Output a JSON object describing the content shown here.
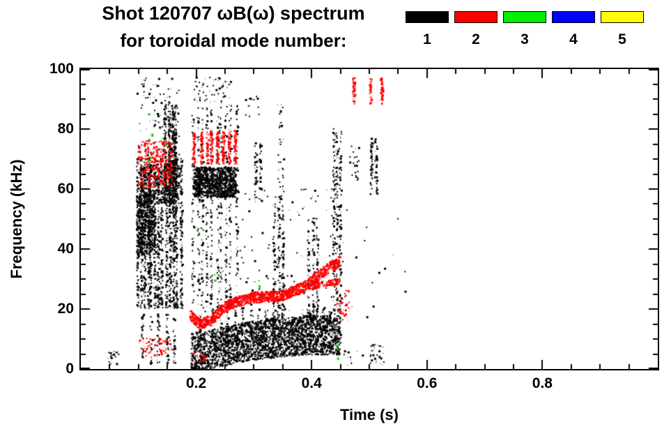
{
  "page": {
    "background": "#ffffff"
  },
  "title": {
    "line1": "Shot 120707 ωB(ω) spectrum",
    "line2": "for toroidal mode number:"
  },
  "legend": {
    "entries": [
      {
        "label": "1",
        "color": "#000000"
      },
      {
        "label": "2",
        "color": "#ff0000"
      },
      {
        "label": "3",
        "color": "#00ee00"
      },
      {
        "label": "4",
        "color": "#0000ff"
      },
      {
        "label": "5",
        "color": "#ffff00"
      }
    ]
  },
  "chart_data": {
    "type": "scatter",
    "title": "Shot 120707 ωB(ω) spectrum for toroidal mode number: 1 2 3 4 5",
    "xlabel": "Time (s)",
    "ylabel": "Frequency (kHz)",
    "xlim": [
      0,
      1.0
    ],
    "ylim": [
      0,
      100
    ],
    "x_major_ticks": [
      0.2,
      0.4,
      0.6,
      0.8
    ],
    "x_minor_step": 0.05,
    "y_major_ticks": [
      0,
      20,
      40,
      60,
      80,
      100
    ],
    "y_minor_step": 5,
    "grid": false,
    "legend_position": "top-right",
    "modes": {
      "1": "#000000",
      "2": "#ff0000",
      "3": "#00cc00",
      "4": "#0000ff",
      "5": "#ffff00"
    },
    "features": [
      {
        "mode": 1,
        "kind": "streaks",
        "t": [
          0.093,
          0.175
        ],
        "f": [
          20,
          70
        ],
        "cols": 13,
        "n": 1500
      },
      {
        "mode": 1,
        "kind": "scatter",
        "t": [
          0.098,
          0.128
        ],
        "f": [
          38,
          58
        ],
        "n": 500
      },
      {
        "mode": 1,
        "kind": "scatter",
        "t": [
          0.1,
          0.17
        ],
        "f": [
          55,
          68
        ],
        "n": 300
      },
      {
        "mode": 1,
        "kind": "streaks",
        "t": [
          0.1,
          0.165
        ],
        "f": [
          1,
          18
        ],
        "cols": 5,
        "n": 130
      },
      {
        "mode": 1,
        "kind": "scatter",
        "t": [
          0.095,
          0.17
        ],
        "f": [
          70,
          97
        ],
        "n": 90
      },
      {
        "mode": 1,
        "kind": "streaks",
        "t": [
          0.143,
          0.166
        ],
        "f": [
          55,
          88
        ],
        "cols": 4,
        "n": 480
      },
      {
        "mode": 1,
        "kind": "streaks",
        "t": [
          0.19,
          0.272
        ],
        "f": [
          20,
          88
        ],
        "cols": 10,
        "n": 650
      },
      {
        "mode": 1,
        "kind": "scatter",
        "t": [
          0.195,
          0.268
        ],
        "f": [
          57,
          67
        ],
        "n": 1100
      },
      {
        "mode": 1,
        "kind": "path",
        "pts": [
          [
            0.19,
            5
          ],
          [
            0.24,
            7
          ],
          [
            0.29,
            9
          ],
          [
            0.34,
            10
          ],
          [
            0.39,
            11
          ],
          [
            0.45,
            11
          ]
        ],
        "width": 13,
        "n": 2800
      },
      {
        "mode": 1,
        "kind": "streaks",
        "t": [
          0.2,
          0.45
        ],
        "f": [
          8,
          20
        ],
        "cols": 20,
        "n": 300
      },
      {
        "mode": 1,
        "kind": "scatter",
        "t": [
          0.27,
          0.46
        ],
        "f": [
          18,
          60
        ],
        "n": 110
      },
      {
        "mode": 1,
        "kind": "streaks",
        "t": [
          0.298,
          0.315
        ],
        "f": [
          55,
          75
        ],
        "cols": 2,
        "n": 60
      },
      {
        "mode": 1,
        "kind": "streaks",
        "t": [
          0.332,
          0.352
        ],
        "f": [
          15,
          55
        ],
        "cols": 3,
        "n": 170
      },
      {
        "mode": 1,
        "kind": "scatter",
        "t": [
          0.34,
          0.351
        ],
        "f": [
          55,
          88
        ],
        "n": 40
      },
      {
        "mode": 1,
        "kind": "streaks",
        "t": [
          0.392,
          0.41
        ],
        "f": [
          15,
          50
        ],
        "cols": 3,
        "n": 130
      },
      {
        "mode": 1,
        "kind": "streaks",
        "t": [
          0.435,
          0.452
        ],
        "f": [
          18,
          80
        ],
        "cols": 3,
        "n": 240
      },
      {
        "mode": 1,
        "kind": "streaks",
        "t": [
          0.498,
          0.515
        ],
        "f": [
          58,
          77
        ],
        "cols": 2,
        "n": 90
      },
      {
        "mode": 1,
        "kind": "scatter",
        "t": [
          0.465,
          0.482
        ],
        "f": [
          62,
          75
        ],
        "n": 25
      },
      {
        "mode": 1,
        "kind": "scatter",
        "t": [
          0.045,
          0.065
        ],
        "f": [
          1,
          6
        ],
        "n": 22
      },
      {
        "mode": 1,
        "kind": "scatter",
        "t": [
          0.5,
          0.525
        ],
        "f": [
          1,
          8
        ],
        "n": 28
      },
      {
        "mode": 1,
        "kind": "scatter",
        "t": [
          0.455,
          0.468
        ],
        "f": [
          1,
          6
        ],
        "n": 10
      },
      {
        "mode": 1,
        "kind": "scatter",
        "t": [
          0.195,
          0.26
        ],
        "f": [
          88,
          97
        ],
        "n": 55
      },
      {
        "mode": 1,
        "kind": "scatter",
        "t": [
          0.28,
          0.31
        ],
        "f": [
          84,
          91
        ],
        "n": 12
      },
      {
        "mode": 1,
        "kind": "scatter",
        "t": [
          0.46,
          0.57
        ],
        "f": [
          2,
          50
        ],
        "n": 16
      },
      {
        "mode": 2,
        "kind": "scatter",
        "t": [
          0.098,
          0.158
        ],
        "f": [
          60,
          76
        ],
        "n": 330
      },
      {
        "mode": 2,
        "kind": "scatter",
        "t": [
          0.1,
          0.16
        ],
        "f": [
          4,
          10
        ],
        "n": 55
      },
      {
        "mode": 2,
        "kind": "streaks",
        "t": [
          0.19,
          0.272
        ],
        "f": [
          68,
          79
        ],
        "cols": 8,
        "n": 430
      },
      {
        "mode": 2,
        "kind": "path",
        "pts": [
          [
            0.188,
            18
          ],
          [
            0.205,
            14.5
          ],
          [
            0.225,
            16
          ],
          [
            0.245,
            20
          ],
          [
            0.265,
            22
          ],
          [
            0.3,
            23.5
          ],
          [
            0.345,
            24
          ],
          [
            0.385,
            27
          ],
          [
            0.405,
            30
          ],
          [
            0.425,
            33
          ],
          [
            0.448,
            35.5
          ]
        ],
        "width": 3.5,
        "n": 1500
      },
      {
        "mode": 2,
        "kind": "path",
        "pts": [
          [
            0.395,
            27
          ],
          [
            0.448,
            29
          ]
        ],
        "width": 2,
        "n": 110
      },
      {
        "mode": 2,
        "kind": "streaks",
        "t": [
          0.468,
          0.525
        ],
        "f": [
          88,
          97
        ],
        "cols": 3,
        "n": 120
      },
      {
        "mode": 2,
        "kind": "scatter",
        "t": [
          0.44,
          0.465
        ],
        "f": [
          16,
          26
        ],
        "n": 35
      },
      {
        "mode": 2,
        "kind": "scatter",
        "t": [
          0.19,
          0.215
        ],
        "f": [
          2,
          6
        ],
        "n": 18
      },
      {
        "mode": 3,
        "kind": "scatter",
        "t": [
          0.1,
          0.125
        ],
        "f": [
          68,
          86
        ],
        "n": 10
      },
      {
        "mode": 3,
        "kind": "scatter",
        "t": [
          0.14,
          0.15
        ],
        "f": [
          74,
          80
        ],
        "n": 4
      },
      {
        "mode": 3,
        "kind": "scatter",
        "t": [
          0.195,
          0.215
        ],
        "f": [
          42,
          50
        ],
        "n": 6
      },
      {
        "mode": 3,
        "kind": "scatter",
        "t": [
          0.23,
          0.25
        ],
        "f": [
          28,
          33
        ],
        "n": 6
      },
      {
        "mode": 3,
        "kind": "scatter",
        "t": [
          0.3,
          0.31
        ],
        "f": [
          26,
          30
        ],
        "n": 4
      },
      {
        "mode": 3,
        "kind": "scatter",
        "t": [
          0.435,
          0.452
        ],
        "f": [
          2,
          8
        ],
        "n": 5
      }
    ]
  }
}
